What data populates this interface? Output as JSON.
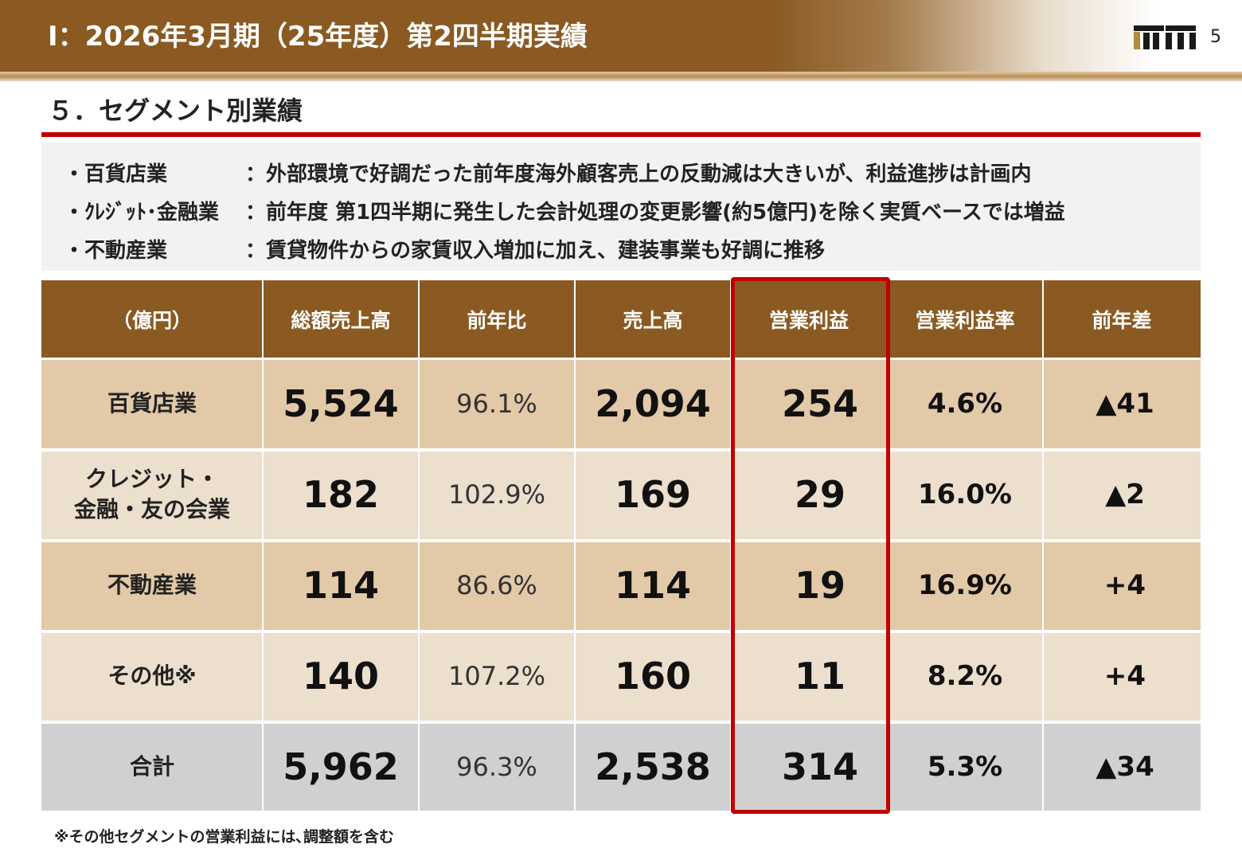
{
  "slide": {
    "title": "Ⅰ：2026年3月期（25年度）第2四半期実績",
    "page_number": "5",
    "section_title": "５．セグメント別業績",
    "logo_icon": "company-logo-icon"
  },
  "summary": [
    {
      "segment": "・百貨店業",
      "description": "：外部環境で好調だった前年度海外顧客売上の反動減は大きいが、利益進捗は計画内"
    },
    {
      "segment": "・ｸﾚｼﾞｯﾄ･金融業",
      "description": "：前年度 第1四半期に発生した会計処理の変更影響(約5億円)を除く実質ベースでは増益"
    },
    {
      "segment": "・不動産業",
      "description": "：賃貸物件からの家賃収入増加に加え、建装事業も好調に推移"
    }
  ],
  "table": {
    "headers": [
      "（億円）",
      "総額売上高",
      "前年比",
      "売上高",
      "営業利益",
      "営業利益率",
      "前年差"
    ],
    "rows": [
      {
        "label": "百貨店業",
        "gross_sales": "5,524",
        "yoy": "96.1%",
        "sales": "2,094",
        "op_profit": "254",
        "op_margin": "4.6%",
        "diff": "▲41"
      },
      {
        "label": "クレジット・\n金融・友の会業",
        "gross_sales": "182",
        "yoy": "102.9%",
        "sales": "169",
        "op_profit": "29",
        "op_margin": "16.0%",
        "diff": "▲2"
      },
      {
        "label": "不動産業",
        "gross_sales": "114",
        "yoy": "86.6%",
        "sales": "114",
        "op_profit": "19",
        "op_margin": "16.9%",
        "diff": "+4"
      },
      {
        "label": "その他※",
        "gross_sales": "140",
        "yoy": "107.2%",
        "sales": "160",
        "op_profit": "11",
        "op_margin": "8.2%",
        "diff": "+4"
      },
      {
        "label": "合計",
        "gross_sales": "5,962",
        "yoy": "96.3%",
        "sales": "2,538",
        "op_profit": "314",
        "op_margin": "5.3%",
        "diff": "▲34"
      }
    ]
  },
  "footnote": "※その他セグメントの営業利益には､調整額を含む",
  "colors": {
    "header_brown": "#8a5a22",
    "row_dark": "#e2c9a8",
    "row_light": "#ecdfcd",
    "total_row": "#d0d0d0",
    "highlight_red": "#c00000"
  }
}
